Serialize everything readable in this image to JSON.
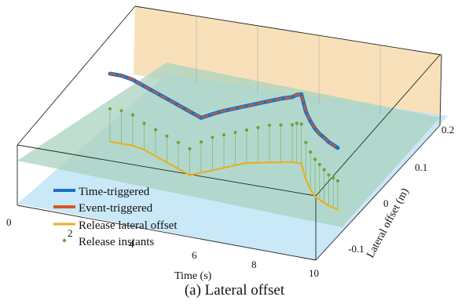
{
  "caption": "(a) Lateral offset",
  "chart_data": {
    "type": "line",
    "projection": "3d",
    "xlabel": "Time (s)",
    "ylabel": "Lateral offset (m)",
    "xlim": [
      0,
      10
    ],
    "ylim": [
      -0.1,
      0.2
    ],
    "x_ticks": [
      "0",
      "2",
      "4",
      "6",
      "8",
      "10"
    ],
    "y_ticks": [
      "-0.1",
      "0",
      "0.1",
      "0.2"
    ],
    "grid": true,
    "legend": {
      "position": "lower-left",
      "entries": [
        "Time-triggered",
        "Event-triggered",
        "Release lateral offset",
        "Release instants"
      ]
    },
    "colors": {
      "time_triggered": "#1f6fc4",
      "event_triggered": "#d9581f",
      "release_offset": "#e8b020",
      "release_instants": "#6aa634",
      "upper_plane": "#f7dcae",
      "mid_plane": "#a9d3c0",
      "lower_plane": "#bfe4f7"
    },
    "x": [
      0,
      0.5,
      1.0,
      1.5,
      2.0,
      2.5,
      3.0,
      3.5,
      4.0,
      4.5,
      5.0,
      5.5,
      6.0,
      6.5,
      7.0,
      7.5,
      8.0,
      8.2,
      8.4,
      8.6,
      8.8,
      9.0,
      9.2,
      9.4,
      9.6,
      9.8,
      10.0
    ],
    "series": [
      {
        "name": "Time-triggered",
        "values": [
          0.1,
          0.1,
          0.095,
          0.085,
          0.075,
          0.065,
          0.055,
          0.045,
          0.035,
          0.048,
          0.06,
          0.07,
          0.08,
          0.09,
          0.1,
          0.11,
          0.118,
          0.125,
          0.128,
          0.09,
          0.07,
          0.055,
          0.045,
          0.038,
          0.03,
          0.025,
          0.02
        ]
      },
      {
        "name": "Event-triggered",
        "values": [
          0.1,
          0.1,
          0.095,
          0.085,
          0.075,
          0.065,
          0.055,
          0.045,
          0.035,
          0.048,
          0.06,
          0.07,
          0.08,
          0.09,
          0.1,
          0.11,
          0.118,
          0.125,
          0.128,
          0.09,
          0.07,
          0.055,
          0.045,
          0.038,
          0.03,
          0.025,
          0.02
        ]
      },
      {
        "name": "Release lateral offset",
        "values": [
          -0.055,
          -0.055,
          -0.055,
          -0.06,
          -0.07,
          -0.08,
          -0.09,
          -0.1,
          -0.09,
          -0.08,
          -0.07,
          -0.06,
          -0.05,
          -0.045,
          -0.04,
          -0.035,
          -0.03,
          -0.03,
          -0.03,
          -0.065,
          -0.085,
          -0.1,
          -0.105,
          -0.11,
          -0.115,
          -0.118,
          -0.12
        ]
      },
      {
        "name": "Release instants",
        "values": [
          0.02,
          0.02,
          0.015,
          0.0,
          -0.01,
          -0.02,
          -0.03,
          -0.04,
          -0.02,
          -0.005,
          0.005,
          0.015,
          0.025,
          0.035,
          0.045,
          0.05,
          0.055,
          0.06,
          0.06,
          0.02,
          0.0,
          -0.015,
          -0.025,
          -0.035,
          -0.045,
          -0.05,
          -0.055
        ]
      }
    ]
  }
}
